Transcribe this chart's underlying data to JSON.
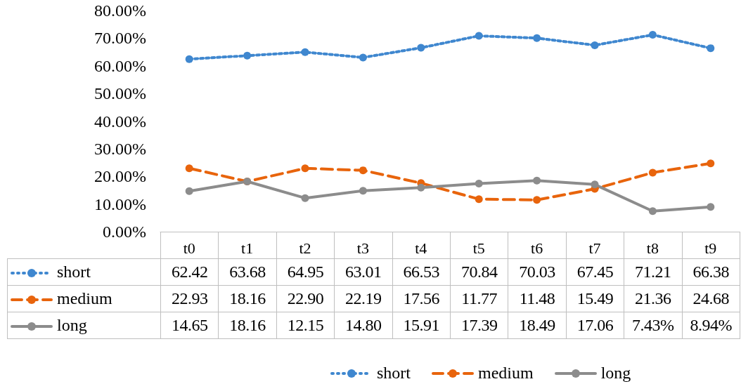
{
  "chart_data": {
    "type": "line",
    "categories": [
      "t0",
      "t1",
      "t2",
      "t3",
      "t4",
      "t5",
      "t6",
      "t7",
      "t8",
      "t9"
    ],
    "ylim": [
      0,
      80
    ],
    "yticks": [
      {
        "value": 0,
        "label": "0.00%"
      },
      {
        "value": 10,
        "label": "10.00%"
      },
      {
        "value": 20,
        "label": "20.00%"
      },
      {
        "value": 30,
        "label": "30.00%"
      },
      {
        "value": 40,
        "label": "40.00%"
      },
      {
        "value": 50,
        "label": "50.00%"
      },
      {
        "value": 60,
        "label": "60.00%"
      },
      {
        "value": 70,
        "label": "70.00%"
      },
      {
        "value": 80,
        "label": "80.00%"
      }
    ],
    "grid": false,
    "legend": "bottom",
    "marker": "circle",
    "series": [
      {
        "name": "short",
        "color": "#3f87cf",
        "line_style": "dotted",
        "values": [
          62.42,
          63.68,
          64.95,
          63.01,
          66.53,
          70.84,
          70.03,
          67.45,
          71.21,
          66.38
        ],
        "value_labels": [
          "62.42",
          "63.68",
          "64.95",
          "63.01",
          "66.53",
          "70.84",
          "70.03",
          "67.45",
          "71.21",
          "66.38"
        ]
      },
      {
        "name": "medium",
        "color": "#e8640c",
        "line_style": "dashed",
        "values": [
          22.93,
          18.16,
          22.9,
          22.19,
          17.56,
          11.77,
          11.48,
          15.49,
          21.36,
          24.68
        ],
        "value_labels": [
          "22.93",
          "18.16",
          "22.90",
          "22.19",
          "17.56",
          "11.77",
          "11.48",
          "15.49",
          "21.36",
          "24.68"
        ]
      },
      {
        "name": "long",
        "color": "#8c8c8c",
        "line_style": "solid",
        "values": [
          14.65,
          18.16,
          12.15,
          14.8,
          15.91,
          17.39,
          18.49,
          17.06,
          7.43,
          8.94
        ],
        "value_labels": [
          "14.65",
          "18.16",
          "12.15",
          "14.80",
          "15.91",
          "17.39",
          "18.49",
          "17.06",
          "7.43%",
          "8.94%"
        ]
      }
    ]
  }
}
